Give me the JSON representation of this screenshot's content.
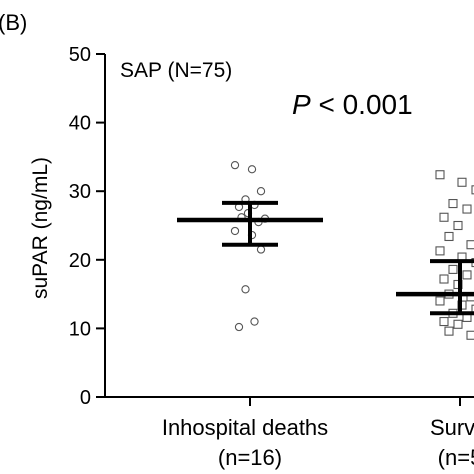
{
  "panel_label": "(B)",
  "chart_data": {
    "type": "scatter",
    "subtitle": "SAP (N=75)",
    "pvalue_italic": "P",
    "pvalue_rest": " < 0.001",
    "ylabel": "suPAR (ng/mL)",
    "ylim": [
      0,
      50
    ],
    "yticks": [
      0,
      10,
      20,
      30,
      40,
      50
    ],
    "grid": false,
    "groups": [
      {
        "label_line1": "Inhospital deaths",
        "label_line2": "(n=16)",
        "marker": "circle",
        "center": 25.8,
        "error_low": 22.2,
        "error_high": 28.3,
        "points": [
          33.8,
          33.2,
          30.0,
          28.8,
          28.0,
          27.7,
          26.8,
          26.0,
          26.2,
          25.5,
          24.2,
          23.6,
          21.5,
          15.7,
          11.0,
          10.2
        ]
      },
      {
        "label_line1": "Survi",
        "label_line2": "(n=5",
        "marker": "square",
        "center": 15.0,
        "error_low": 12.2,
        "error_high": 19.8,
        "points": [
          32.4,
          31.3,
          30.2,
          28.2,
          27.4,
          26.2,
          25.0,
          24.3,
          23.4,
          22.2,
          21.3,
          20.4,
          19.6,
          18.6,
          17.8,
          17.2,
          16.4,
          15.6,
          15.0,
          14.6,
          14.0,
          13.4,
          12.8,
          12.2,
          11.6,
          11.0,
          10.6,
          10.0,
          9.6,
          9.0
        ]
      }
    ]
  }
}
